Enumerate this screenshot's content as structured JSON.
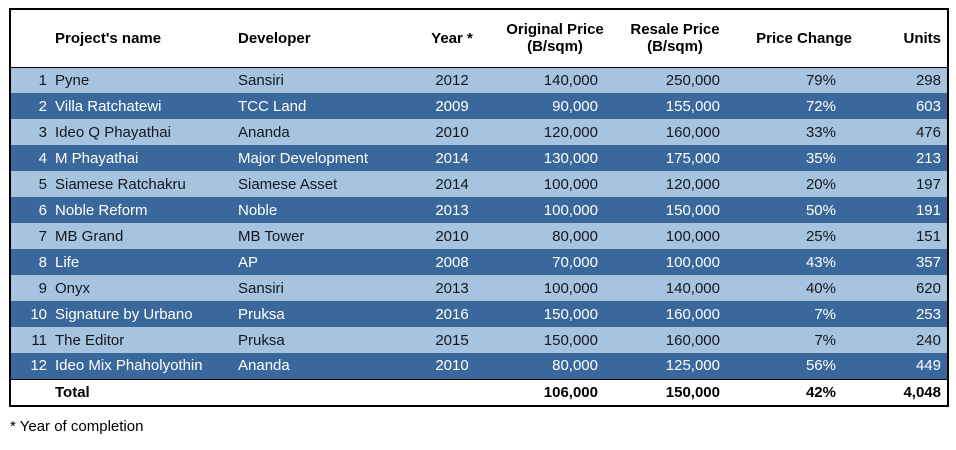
{
  "chart_data": {
    "type": "table",
    "columns": [
      {
        "label": "Project's name",
        "sublabel": ""
      },
      {
        "label": "Developer",
        "sublabel": ""
      },
      {
        "label": "Year *",
        "sublabel": ""
      },
      {
        "label": "Original Price",
        "sublabel": "(B/sqm)"
      },
      {
        "label": "Resale Price",
        "sublabel": "(B/sqm)"
      },
      {
        "label": "Price Change",
        "sublabel": ""
      },
      {
        "label": "Units",
        "sublabel": ""
      }
    ],
    "rows": [
      {
        "num": "1",
        "name": "Pyne",
        "developer": "Sansiri",
        "year": "2012",
        "original_price": "140,000",
        "resale_price": "250,000",
        "price_change": "79%",
        "units": "298"
      },
      {
        "num": "2",
        "name": "Villa Ratchatewi",
        "developer": "TCC Land",
        "year": "2009",
        "original_price": "90,000",
        "resale_price": "155,000",
        "price_change": "72%",
        "units": "603"
      },
      {
        "num": "3",
        "name": "Ideo Q Phayathai",
        "developer": "Ananda",
        "year": "2010",
        "original_price": "120,000",
        "resale_price": "160,000",
        "price_change": "33%",
        "units": "476"
      },
      {
        "num": "4",
        "name": "M Phayathai",
        "developer": "Major Development",
        "year": "2014",
        "original_price": "130,000",
        "resale_price": "175,000",
        "price_change": "35%",
        "units": "213"
      },
      {
        "num": "5",
        "name": "Siamese Ratchakru",
        "developer": "Siamese Asset",
        "year": "2014",
        "original_price": "100,000",
        "resale_price": "120,000",
        "price_change": "20%",
        "units": "197"
      },
      {
        "num": "6",
        "name": "Noble Reform",
        "developer": "Noble",
        "year": "2013",
        "original_price": "100,000",
        "resale_price": "150,000",
        "price_change": "50%",
        "units": "191"
      },
      {
        "num": "7",
        "name": "MB Grand",
        "developer": "MB Tower",
        "year": "2010",
        "original_price": "80,000",
        "resale_price": "100,000",
        "price_change": "25%",
        "units": "151"
      },
      {
        "num": "8",
        "name": "Life",
        "developer": "AP",
        "year": "2008",
        "original_price": "70,000",
        "resale_price": "100,000",
        "price_change": "43%",
        "units": "357"
      },
      {
        "num": "9",
        "name": "Onyx",
        "developer": "Sansiri",
        "year": "2013",
        "original_price": "100,000",
        "resale_price": "140,000",
        "price_change": "40%",
        "units": "620"
      },
      {
        "num": "10",
        "name": "Signature by Urbano",
        "developer": "Pruksa",
        "year": "2016",
        "original_price": "150,000",
        "resale_price": "160,000",
        "price_change": "7%",
        "units": "253"
      },
      {
        "num": "11",
        "name": "The Editor",
        "developer": "Pruksa",
        "year": "2015",
        "original_price": "150,000",
        "resale_price": "160,000",
        "price_change": "7%",
        "units": "240"
      },
      {
        "num": "12",
        "name": "Ideo Mix Phaholyothin",
        "developer": "Ananda",
        "year": "2010",
        "original_price": "80,000",
        "resale_price": "125,000",
        "price_change": "56%",
        "units": "449"
      }
    ],
    "total": {
      "label": "Total",
      "original_price": "106,000",
      "resale_price": "150,000",
      "price_change": "42%",
      "units": "4,048"
    }
  },
  "footnote": "* Year of completion",
  "colors": {
    "row_light": "#a6c3df",
    "row_dark": "#3a689c",
    "header_bg": "#ffffff",
    "border": "#000000"
  }
}
